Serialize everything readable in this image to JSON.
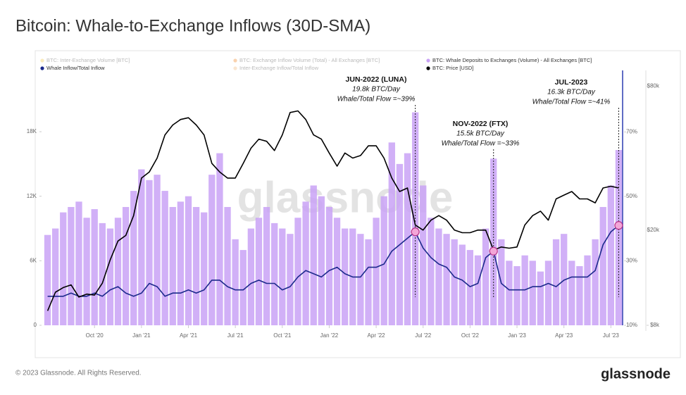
{
  "chart_data": {
    "type": "combo",
    "title": "Bitcoin: Whale-to-Exchange Inflows (30D-SMA)",
    "watermark": "glassnode",
    "footer": "© 2023 Glassnode. All Rights Reserved.",
    "logo": "glassnode",
    "categories": [
      null,
      null,
      null,
      null,
      null,
      null,
      "Oct '20",
      null,
      null,
      null,
      null,
      null,
      "Jan '21",
      null,
      null,
      null,
      null,
      null,
      "Apr '21",
      null,
      null,
      null,
      null,
      null,
      "Jul '21",
      null,
      null,
      null,
      null,
      null,
      "Oct '21",
      null,
      null,
      null,
      null,
      null,
      "Jan '22",
      null,
      null,
      null,
      null,
      null,
      "Apr '22",
      null,
      null,
      null,
      null,
      null,
      "Jul '22",
      null,
      null,
      null,
      null,
      null,
      "Oct '22",
      null,
      null,
      null,
      null,
      null,
      "Jan '23",
      null,
      null,
      null,
      null,
      null,
      "Apr '23",
      null,
      null,
      null,
      null,
      null,
      "Jul '23",
      null
    ],
    "series": [
      {
        "name": "BTC: Inter-Exchange Volume [BTC]",
        "color": "#f3d36b",
        "visible": false
      },
      {
        "name": "BTC: Exchange Inflow Volume (Total) - All Exchanges [BTC]",
        "color": "#f29b4c",
        "visible": false
      },
      {
        "name": "BTC: Whale Deposits to Exchanges (Volume) - All Exchanges [BTC]",
        "color": "#c9a2f6",
        "visible": true,
        "style": "bar",
        "values": [
          8400,
          9000,
          10500,
          11000,
          11500,
          10000,
          10800,
          9500,
          9000,
          10000,
          11000,
          12500,
          14500,
          13500,
          14000,
          12500,
          11000,
          11500,
          12000,
          11000,
          10500,
          14000,
          16000,
          11000,
          8000,
          7000,
          9000,
          10000,
          11000,
          9500,
          9000,
          8500,
          10000,
          11500,
          13000,
          12000,
          11000,
          10000,
          9000,
          9000,
          8500,
          8000,
          10000,
          12000,
          17000,
          15000,
          16000,
          19800,
          13000,
          10000,
          9000,
          8500,
          8000,
          7500,
          7000,
          6500,
          9000,
          15500,
          8000,
          6000,
          5500,
          6500,
          6000,
          5000,
          6000,
          8000,
          8500,
          6000,
          5500,
          6500,
          8000,
          11000,
          13000,
          16300
        ]
      },
      {
        "name": "Whale Inflow/Total Inflow",
        "color": "#1c2a8c",
        "visible": true,
        "style": "line",
        "axis": "y2",
        "values": [
          19,
          19,
          19,
          20,
          19,
          19,
          20,
          19,
          21,
          22,
          20,
          19,
          20,
          23,
          22,
          19,
          20,
          20,
          21,
          20,
          21,
          24,
          24,
          22,
          21,
          21,
          23,
          24,
          23,
          23,
          21,
          22,
          25,
          27,
          26,
          25,
          27,
          28,
          26,
          25,
          25,
          28,
          28,
          29,
          33,
          35,
          37,
          39,
          34,
          31,
          29,
          28,
          25,
          24,
          22,
          23,
          31,
          33,
          23,
          21,
          21,
          21,
          22,
          22,
          23,
          22,
          24,
          25,
          25,
          25,
          27,
          35,
          39,
          41
        ]
      },
      {
        "name": "Inter-Exchange Inflow/Total Inflow",
        "color": "#f5c796",
        "visible": false
      },
      {
        "name": "BTC: Price [USD]",
        "color": "#000000",
        "visible": true,
        "style": "line",
        "axis": "y3",
        "values": [
          9200,
          11000,
          11500,
          11800,
          10500,
          10800,
          10700,
          12000,
          15000,
          18000,
          19000,
          23000,
          33000,
          35000,
          40000,
          50000,
          55000,
          58000,
          59000,
          55000,
          50000,
          38000,
          35000,
          33000,
          33000,
          38000,
          44000,
          48000,
          47000,
          43000,
          50000,
          62000,
          63000,
          58000,
          50000,
          48000,
          42000,
          37000,
          42000,
          40000,
          41000,
          45000,
          45000,
          40000,
          33000,
          29000,
          30000,
          21000,
          20000,
          22000,
          23000,
          22000,
          20000,
          19500,
          19500,
          20000,
          20000,
          16500,
          17000,
          16800,
          17000,
          21000,
          23000,
          24000,
          22000,
          27000,
          28000,
          29000,
          27000,
          27000,
          26000,
          30000,
          30500,
          30000
        ]
      }
    ],
    "ylim": [
      0,
      23700
    ],
    "yticks": [
      {
        "value": 0,
        "label": "0"
      },
      {
        "value": 6000,
        "label": "6K"
      },
      {
        "value": 12000,
        "label": "12K"
      },
      {
        "value": 18000,
        "label": "18K"
      }
    ],
    "y2lim": [
      10,
      89.1
    ],
    "y2ticks": [
      {
        "value": 10,
        "label": "10%"
      },
      {
        "value": 30,
        "label": "30%"
      },
      {
        "value": 50,
        "label": "50%"
      },
      {
        "value": 70,
        "label": "70%"
      }
    ],
    "y3lim": [
      8000,
      93000
    ],
    "y3log": true,
    "y3ticks": [
      {
        "value": 8000,
        "label": "$8k"
      },
      {
        "value": 20000,
        "label": "$20k"
      },
      {
        "value": 80000,
        "label": "$80k"
      }
    ],
    "grid": false,
    "annotations": [
      {
        "lines": [
          "JUN-2022 (LUNA)",
          "19.8k BTC/Day",
          "Whale/Total Flow =~39%"
        ]
      },
      {
        "lines": [
          "NOV-2022 (FTX)",
          "15.5k BTC/Day",
          "Whale/Total Flow =~33%"
        ]
      },
      {
        "lines": [
          "JUL-2023",
          "16.3k BTC/Day",
          "Whale/Total Flow =~41%"
        ]
      }
    ]
  }
}
